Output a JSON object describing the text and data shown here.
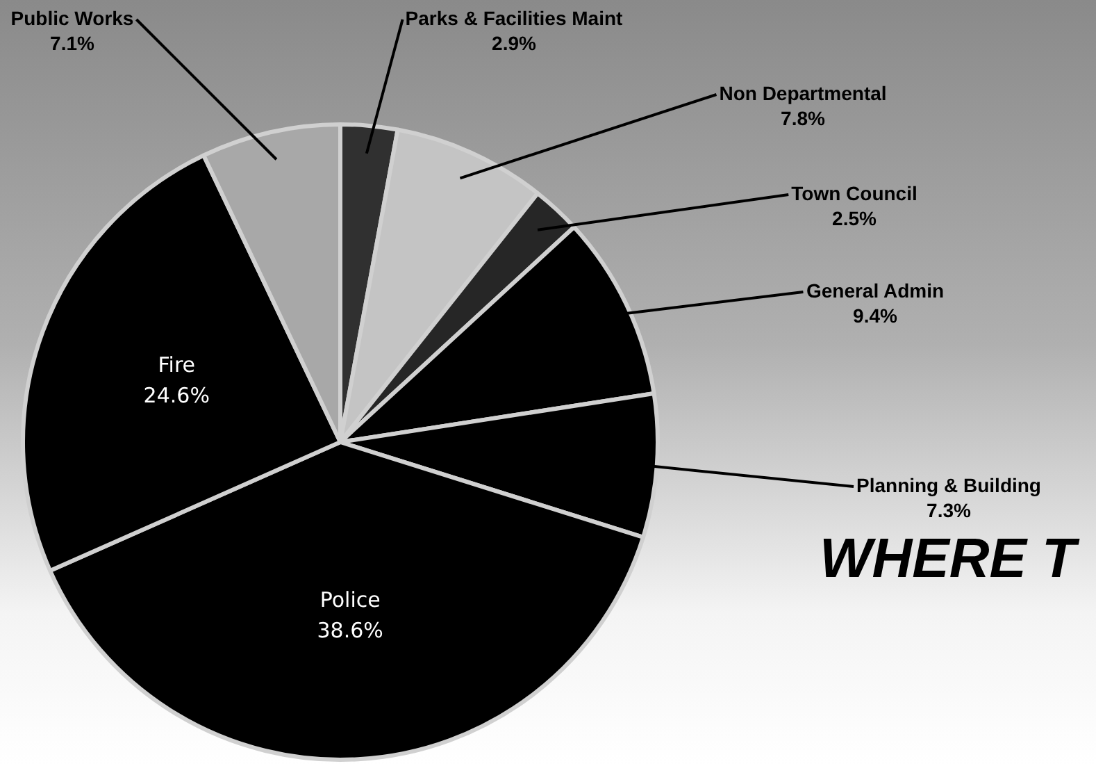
{
  "chart_data": {
    "type": "pie",
    "title": "WHERE T",
    "categories": [
      "Parks & Facilities Maint",
      "Non Departmental",
      "Town Council",
      "General Admin",
      "Planning & Building",
      "Police",
      "Fire",
      "Public Works"
    ],
    "values": [
      2.9,
      7.8,
      2.5,
      9.4,
      7.3,
      38.6,
      24.6,
      7.1
    ],
    "colors": [
      "#303030",
      "#c4c4c4",
      "#262626",
      "#000000",
      "#000000",
      "#000000",
      "#000000",
      "#a8a8a8"
    ],
    "value_labels": [
      "2.9%",
      "7.8%",
      "2.5%",
      "9.4%",
      "7.3%",
      "38.6%",
      "24.6%",
      "7.1%"
    ],
    "legend": false
  }
}
